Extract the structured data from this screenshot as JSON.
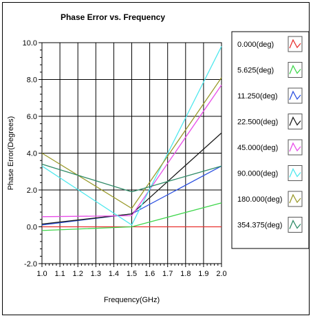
{
  "chart_data": {
    "type": "line",
    "title": "Phase Error vs. Frequency",
    "xlabel": "Frequency(GHz)",
    "ylabel": "Phase Error(Degrees)",
    "xlim": [
      1.0,
      2.0
    ],
    "ylim": [
      -2.0,
      10.0
    ],
    "xticks": [
      "1.0",
      "1.1",
      "1.2",
      "1.3",
      "1.4",
      "1.5",
      "1.6",
      "1.7",
      "1.8",
      "1.9",
      "2.0"
    ],
    "yticks": [
      "-2.0",
      "0.0",
      "2.0",
      "4.0",
      "6.0",
      "8.0",
      "10.0"
    ],
    "grid": true,
    "legend_position": "right",
    "x": [
      1.0,
      1.5,
      2.0
    ],
    "series": [
      {
        "name": "0.000(deg)",
        "color": "#e8302e",
        "values": [
          0.0,
          0.0,
          0.0
        ]
      },
      {
        "name": "5.625(deg)",
        "color": "#3dd64a",
        "values": [
          -0.2,
          0.0,
          1.3
        ]
      },
      {
        "name": "11.250(deg)",
        "color": "#2a4fe0",
        "values": [
          0.1,
          0.7,
          3.3
        ]
      },
      {
        "name": "22.500(deg)",
        "color": "#1a1a1a",
        "values": [
          0.15,
          0.7,
          5.1
        ]
      },
      {
        "name": "45.000(deg)",
        "color": "#e84ce8",
        "values": [
          0.55,
          0.6,
          7.7
        ]
      },
      {
        "name": "90.000(deg)",
        "color": "#4ee8ee",
        "values": [
          3.3,
          0.1,
          9.8
        ]
      },
      {
        "name": "180.000(deg)",
        "color": "#9a9a2a",
        "values": [
          4.0,
          1.0,
          8.1
        ]
      },
      {
        "name": "354.375(deg)",
        "color": "#2e8a66",
        "values": [
          3.4,
          1.9,
          3.3
        ]
      }
    ]
  }
}
